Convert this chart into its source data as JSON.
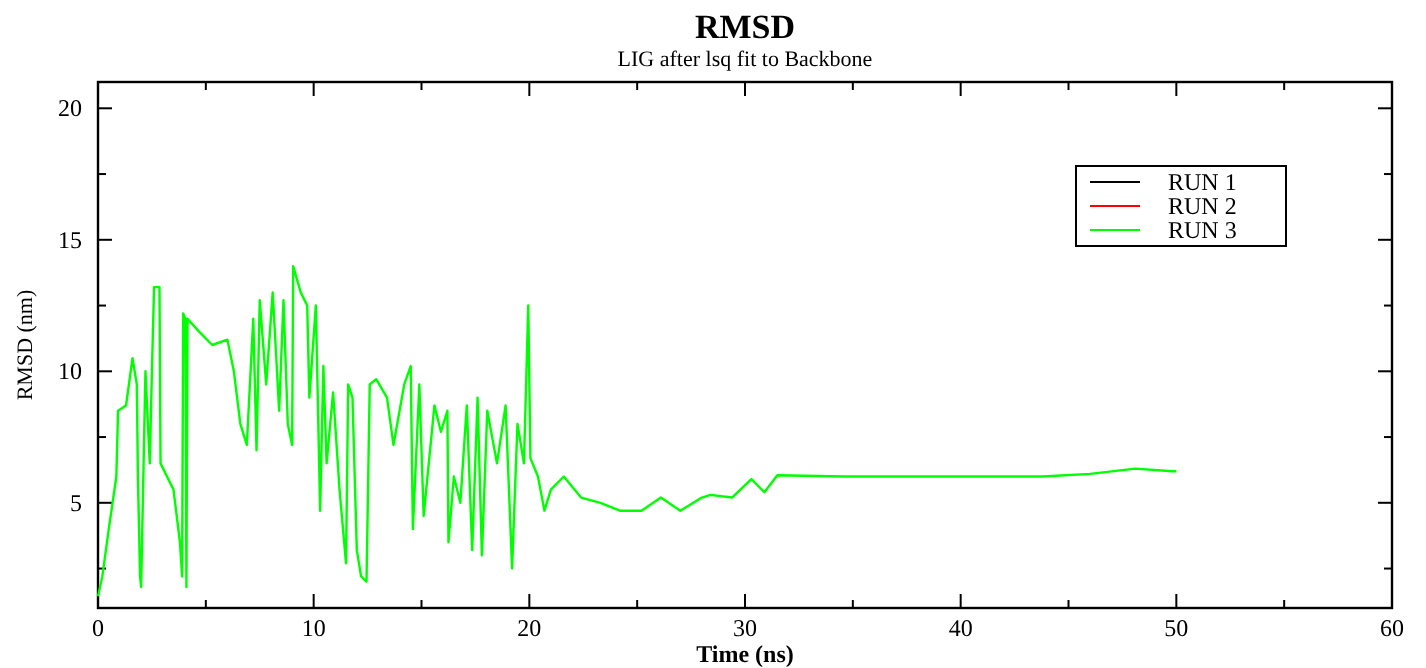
{
  "chart_data": {
    "type": "line",
    "title": "RMSD",
    "subtitle": "LIG after lsq fit to Backbone",
    "xlabel": "Time (ns)",
    "ylabel": "RMSD (nm)",
    "xlim": [
      0,
      60
    ],
    "ylim": [
      1,
      21
    ],
    "xticks": [
      0,
      {
        "value": 5,
        "label": null
      },
      10,
      {
        "value": 15,
        "label": null
      },
      20,
      {
        "value": 25,
        "label": null
      },
      30,
      {
        "value": 35,
        "label": null
      },
      40,
      {
        "value": 45,
        "label": null
      },
      50,
      {
        "value": 55,
        "label": null
      },
      60
    ],
    "yticks": [
      {
        "value": 2.5,
        "label": null
      },
      5,
      {
        "value": 7.5,
        "label": null
      },
      10,
      {
        "value": 12.5,
        "label": null
      },
      15,
      {
        "value": 17.5,
        "label": null
      },
      20
    ],
    "grid": false,
    "legend": "top right",
    "marker": "none",
    "line_style": "solid",
    "series": [
      {
        "name": "RUN 1",
        "color": "#000000"
      },
      {
        "name": "RUN 2",
        "color": "#ff0000"
      },
      {
        "name": "RUN 3",
        "color": "#00ff00",
        "x": [
          0,
          0.2,
          0.5,
          0.85,
          0.93,
          1.3,
          1.6,
          1.8,
          1.85,
          1.95,
          2.0,
          2.2,
          2.4,
          2.5,
          2.6,
          2.85,
          2.9,
          3.2,
          3.5,
          3.8,
          3.9,
          3.95,
          4.05,
          4.1,
          4.15,
          4.7,
          5.3,
          6.0,
          6.3,
          6.6,
          6.9,
          7.2,
          7.35,
          7.5,
          7.8,
          8.1,
          8.4,
          8.6,
          8.8,
          9.0,
          9.05,
          9.4,
          9.7,
          9.8,
          10.1,
          10.3,
          10.45,
          10.6,
          10.9,
          11.2,
          11.5,
          11.6,
          11.8,
          12.0,
          12.2,
          12.45,
          12.6,
          12.9,
          13.4,
          13.7,
          14.2,
          14.5,
          14.6,
          14.9,
          15.1,
          15.6,
          15.9,
          16.2,
          16.25,
          16.5,
          16.8,
          17.1,
          17.35,
          17.6,
          17.8,
          18.05,
          18.5,
          18.9,
          19.2,
          19.45,
          19.75,
          19.95,
          20.05,
          20.4,
          20.7,
          21.0,
          21.6,
          22.4,
          23.3,
          24.2,
          25.2,
          26.1,
          27.0,
          28.0,
          28.4,
          29.4,
          30.3,
          30.9,
          31.5,
          34.6,
          39.2,
          43.8,
          46.0,
          48.1,
          49.8,
          50
        ],
        "values": [
          1.45,
          2.2,
          4,
          6,
          8.5,
          8.7,
          10.5,
          9.5,
          6,
          2.2,
          1.8,
          10,
          6.5,
          10,
          13.2,
          13.2,
          6.5,
          6,
          5.5,
          3.5,
          2.2,
          12.2,
          12,
          1.8,
          12,
          11.5,
          11,
          11.2,
          10,
          8,
          7.2,
          12,
          7,
          12.7,
          9.5,
          13,
          8.5,
          12.7,
          8,
          7.2,
          14,
          13,
          12.5,
          9,
          12.5,
          4.7,
          10.2,
          6.5,
          9.2,
          5.5,
          2.7,
          9.5,
          9,
          3.2,
          2.2,
          2,
          9.5,
          9.7,
          9,
          7.2,
          9.5,
          10.2,
          4,
          9.5,
          4.5,
          8.7,
          7.7,
          8.5,
          3.5,
          6,
          5,
          8.7,
          3.2,
          9,
          3,
          8.5,
          6.5,
          8.7,
          2.5,
          8,
          6.5,
          12.5,
          6.7,
          6,
          4.7,
          5.5,
          6,
          5.2,
          5,
          4.7,
          4.7,
          5.2,
          4.7,
          5.2,
          5.3,
          5.2,
          5.9,
          5.4,
          6.05,
          6,
          6,
          6,
          6.1,
          6.3,
          6.2,
          6.2
        ]
      }
    ]
  }
}
